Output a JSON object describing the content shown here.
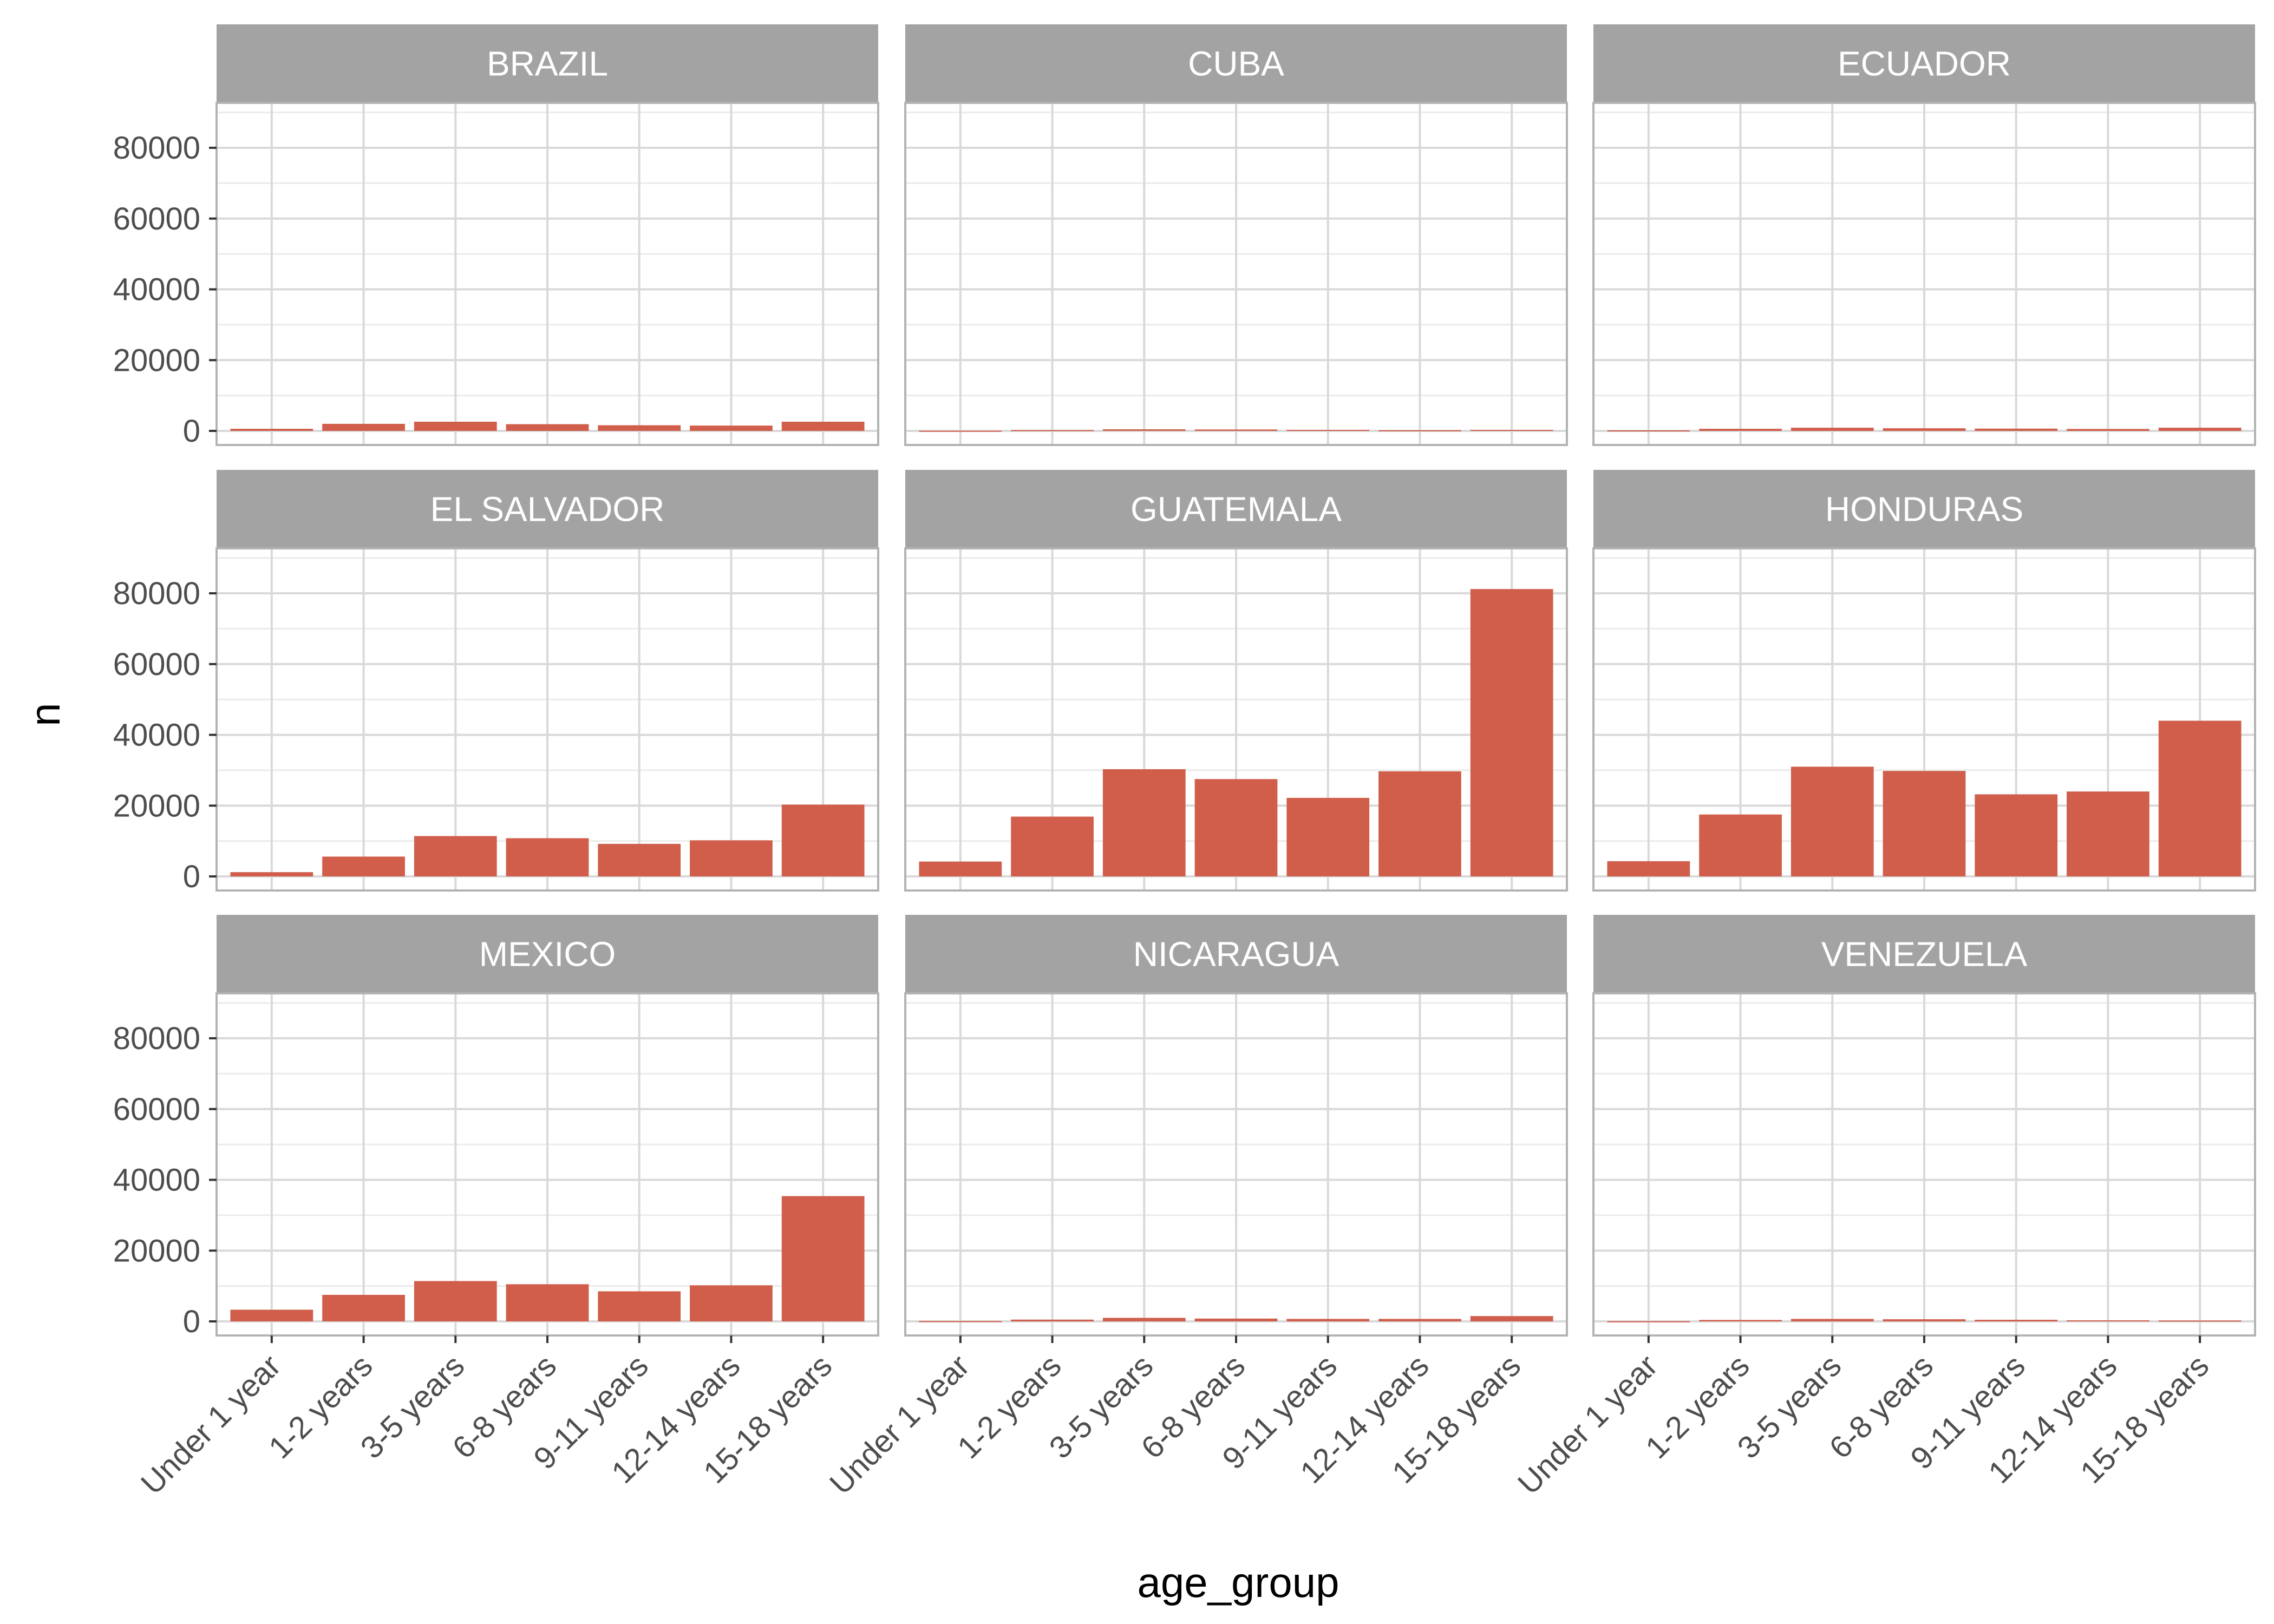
{
  "chart_data": {
    "type": "bar",
    "facet_by": "country",
    "xlabel": "age_group",
    "ylabel": "n",
    "ylim": [
      0,
      90000
    ],
    "y_ticks": [
      0,
      20000,
      40000,
      60000,
      80000
    ],
    "y_tick_labels": [
      "0",
      "20000",
      "40000",
      "60000",
      "80000"
    ],
    "grid": true,
    "bar_color": "#D05E4B",
    "strip_color": "#A3A3A3",
    "categories": [
      "Under 1 year",
      "1-2 years",
      "3-5 years",
      "6-8 years",
      "9-11 years",
      "12-14 years",
      "15-18 years"
    ],
    "facets": [
      {
        "name": "BRAZIL",
        "values": [
          600,
          2000,
          2600,
          1900,
          1600,
          1500,
          2600
        ]
      },
      {
        "name": "CUBA",
        "values": [
          50,
          250,
          450,
          400,
          300,
          200,
          300
        ]
      },
      {
        "name": "ECUADOR",
        "values": [
          150,
          600,
          900,
          750,
          650,
          550,
          900
        ]
      },
      {
        "name": "EL SALVADOR",
        "values": [
          1200,
          5600,
          11400,
          10800,
          9200,
          10200,
          20300
        ]
      },
      {
        "name": "GUATEMALA",
        "values": [
          4200,
          16900,
          30300,
          27500,
          22200,
          29700,
          81200
        ]
      },
      {
        "name": "HONDURAS",
        "values": [
          4300,
          17500,
          31000,
          29800,
          23200,
          24000,
          44000
        ]
      },
      {
        "name": "MEXICO",
        "values": [
          3300,
          7500,
          11400,
          10500,
          8500,
          10200,
          35400
        ]
      },
      {
        "name": "NICARAGUA",
        "values": [
          100,
          500,
          1000,
          800,
          700,
          700,
          1500
        ]
      },
      {
        "name": "VENEZUELA",
        "values": [
          50,
          400,
          700,
          600,
          450,
          300,
          250
        ]
      }
    ]
  }
}
